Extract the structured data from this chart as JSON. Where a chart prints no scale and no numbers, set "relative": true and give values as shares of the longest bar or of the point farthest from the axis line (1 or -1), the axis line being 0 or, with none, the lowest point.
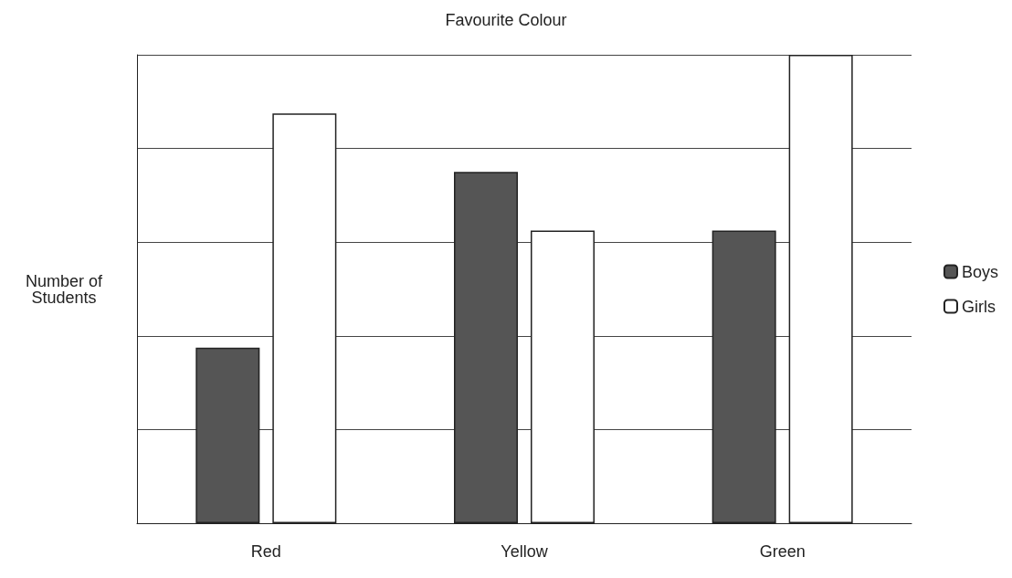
{
  "chart_data": {
    "type": "bar",
    "title": "Favourite Colour",
    "ylabel": "Number of\nStudents",
    "categories": [
      "Red",
      "Yellow",
      "Green"
    ],
    "series": [
      {
        "name": "Boys",
        "color": "#555555",
        "values": [
          0.375,
          0.75,
          0.625
        ]
      },
      {
        "name": "Girls",
        "color": "#ffffff",
        "values": [
          0.875,
          0.625,
          1
        ]
      }
    ],
    "relative": true,
    "grid": true,
    "legend": "right"
  }
}
